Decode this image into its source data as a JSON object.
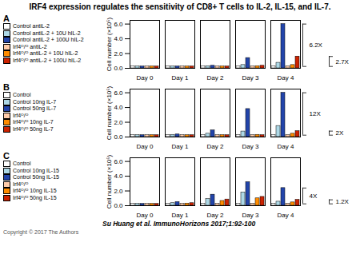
{
  "title": "IRF4 expression regulates the sensitivity of CD8+ T cells to IL-2, IL-15, and IL-7.",
  "annotations": [
    "Su Huang et al. ImmunoHorizons 2017;1:92-100",
    "Copyright © 2017 The Authors"
  ],
  "chart_data": [
    {
      "type": "bar",
      "title": "A",
      "categories": [
        "Day 0",
        "Day 1",
        "Day 2",
        "Day 3",
        "Day 4"
      ],
      "series": [
        {
          "name": "Control antiL-2",
          "color": "#FFFFFF",
          "values": [
            0.25,
            0.25,
            0.25,
            0.25,
            0.25
          ]
        },
        {
          "name": "Control antiL-2 + 10U hIL-2",
          "color": "#ADD8E6",
          "values": [
            0.25,
            0.25,
            0.3,
            0.45,
            0.75
          ]
        },
        {
          "name": "Control antiL-2 + 100U hIL-2",
          "color": "#2244AA",
          "values": [
            0.25,
            0.25,
            0.35,
            1.4,
            6.0
          ]
        },
        {
          "name": "Irf4ᴼ/ᴼ antiL-2",
          "color": "#FFCCAA",
          "values": [
            0.25,
            0.25,
            0.25,
            0.25,
            0.25
          ]
        },
        {
          "name": "Irf4ᴼ/ᴼ antiL-2 + 10U hIL-2",
          "color": "#FF8C00",
          "values": [
            0.25,
            0.25,
            0.25,
            0.3,
            0.45
          ]
        },
        {
          "name": "Irf4ᴼ/ᴼ antiL-2 + 100U hIL-2",
          "color": "#CC2200",
          "values": [
            0.25,
            0.25,
            0.25,
            0.35,
            1.6
          ]
        }
      ],
      "ylabel": "Cell number (×10⁵)",
      "ylim": [
        0,
        6.5
      ],
      "yticks": [
        0,
        2,
        4,
        6
      ],
      "legend": "upper left",
      "annotations": [
        {
          "text": "6.2X",
          "y1": 0.25,
          "y2": 6.0
        },
        {
          "text": "2.7X",
          "y1": 0.25,
          "y2": 1.6
        }
      ]
    },
    {
      "type": "bar",
      "title": "B",
      "categories": [
        "Day 0",
        "Day 1",
        "Day 2",
        "Day 3",
        "Day 4"
      ],
      "series": [
        {
          "name": "Control",
          "color": "#FFFFFF",
          "values": [
            0.25,
            0.25,
            0.25,
            0.25,
            0.25
          ]
        },
        {
          "name": "Control 10ng IL-7",
          "color": "#ADD8E6",
          "values": [
            0.25,
            0.3,
            0.45,
            0.75,
            1.5
          ]
        },
        {
          "name": "Control 50ng IL-7",
          "color": "#2244AA",
          "values": [
            0.25,
            0.35,
            0.9,
            3.8,
            6.0
          ]
        },
        {
          "name": "Irf4ᴼ/ᴼ",
          "color": "#FFCCAA",
          "values": [
            0.25,
            0.25,
            0.25,
            0.25,
            0.25
          ]
        },
        {
          "name": "Irf4ᴼ/ᴼ 10ng IL-7",
          "color": "#FF8C00",
          "values": [
            0.25,
            0.25,
            0.25,
            0.3,
            0.45
          ]
        },
        {
          "name": "Irf4ᴼ/ᴼ 50ng IL-7",
          "color": "#CC2200",
          "values": [
            0.25,
            0.25,
            0.25,
            0.25,
            0.8
          ]
        }
      ],
      "ylabel": "Cell number (×10⁵)",
      "ylim": [
        0,
        6.5
      ],
      "yticks": [
        0,
        2,
        4,
        6
      ],
      "legend": "upper left",
      "annotations": [
        {
          "text": "12X",
          "y1": 0.25,
          "y2": 6.0
        },
        {
          "text": "2X",
          "y1": 0.25,
          "y2": 0.8
        }
      ]
    },
    {
      "type": "bar",
      "title": "C",
      "categories": [
        "Day 0",
        "Day 1",
        "Day 2",
        "Day 3",
        "Day 4"
      ],
      "series": [
        {
          "name": "Control",
          "color": "#FFFFFF",
          "values": [
            0.25,
            0.25,
            0.25,
            0.25,
            0.25
          ]
        },
        {
          "name": "Control 10ng IL-15",
          "color": "#ADD8E6",
          "values": [
            0.25,
            0.35,
            0.9,
            1.8,
            0.55
          ]
        },
        {
          "name": "Control 50ng IL-15",
          "color": "#2244AA",
          "values": [
            0.25,
            0.5,
            1.5,
            3.2,
            2.4
          ]
        },
        {
          "name": "Irf4ᴼ/ᴼ",
          "color": "#FFCCAA",
          "values": [
            0.25,
            0.25,
            0.25,
            0.25,
            0.25
          ]
        },
        {
          "name": "Irf4ᴼ/ᴼ 10ng IL-15",
          "color": "#FF8C00",
          "values": [
            0.25,
            0.3,
            0.65,
            1.0,
            0.45
          ]
        },
        {
          "name": "Irf4ᴼ/ᴼ 50ng IL-15",
          "color": "#CC2200",
          "values": [
            0.25,
            0.35,
            0.85,
            1.2,
            0.8
          ]
        }
      ],
      "ylabel": "Cell number (×10⁵)",
      "ylim": [
        0,
        6.5
      ],
      "yticks": [
        0,
        2,
        4,
        6
      ],
      "legend": "upper left",
      "annotations": [
        {
          "text": "4X",
          "y1": 0.25,
          "y2": 2.4
        },
        {
          "text": "1.2X",
          "y1": 0.25,
          "y2": 0.8
        }
      ]
    }
  ]
}
